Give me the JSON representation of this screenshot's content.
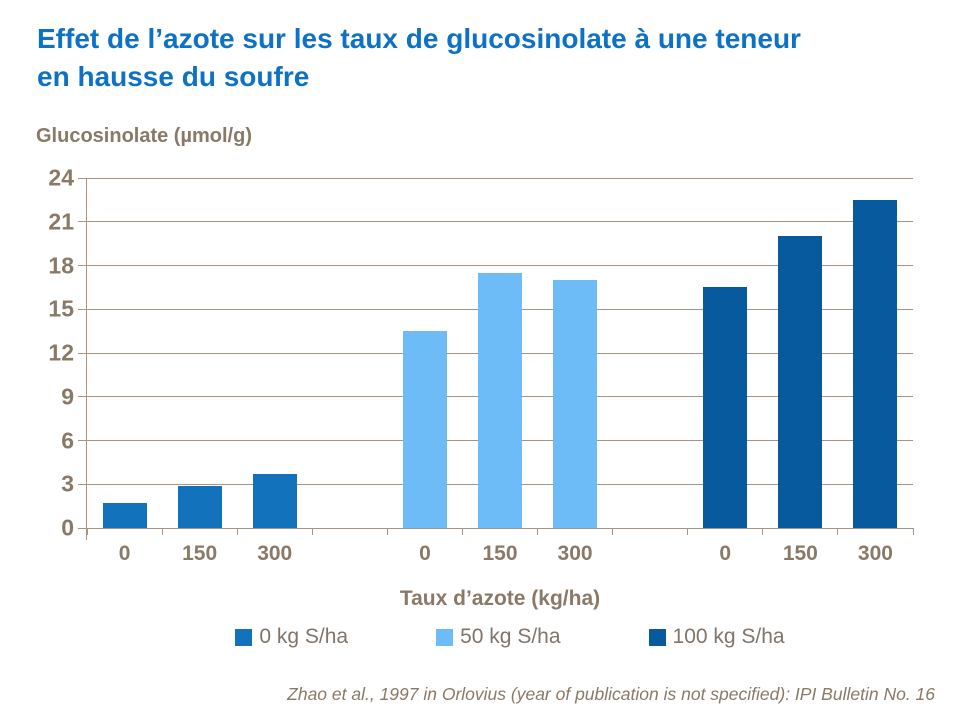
{
  "slide": {
    "title": "Effet de l’azote sur les taux de glucosinolate à une teneur en hausse du soufre",
    "title_lines": [
      "Effet de l’azote sur les taux de glucosinolate à une teneur",
      "en hausse du soufre"
    ],
    "source": "Zhao et al., 1997 in Orlovius (year of publication is not specified): IPI Bulletin No. 16"
  },
  "colors": {
    "title_text": "#0D72C6",
    "axis_text": "#8A7967",
    "grid_line": "#A79581",
    "legend_text": "#80756A",
    "source_text": "#8A7967",
    "background": "#FFFFFF"
  },
  "chart_data": {
    "type": "bar",
    "grouping": "series-as-clusters",
    "title": "",
    "ylabel": "Glucosinolate (µmol/g)",
    "xlabel": "Taux d’azote (kg/ha)",
    "ylim": [
      0,
      24
    ],
    "yticks": [
      0,
      3,
      6,
      9,
      12,
      15,
      18,
      21,
      24
    ],
    "grid": true,
    "legend_position": "bottom",
    "categories": [
      "0",
      "150",
      "300"
    ],
    "series": [
      {
        "name": "0 kg S/ha",
        "color": "#1273BC",
        "values": [
          1.7,
          2.9,
          3.7
        ]
      },
      {
        "name": "50 kg S/ha",
        "color": "#6DBCF8",
        "values": [
          13.5,
          17.5,
          17.0
        ]
      },
      {
        "name": "100 kg S/ha",
        "color": "#065A9D",
        "values": [
          16.5,
          20.0,
          22.5
        ]
      }
    ]
  }
}
